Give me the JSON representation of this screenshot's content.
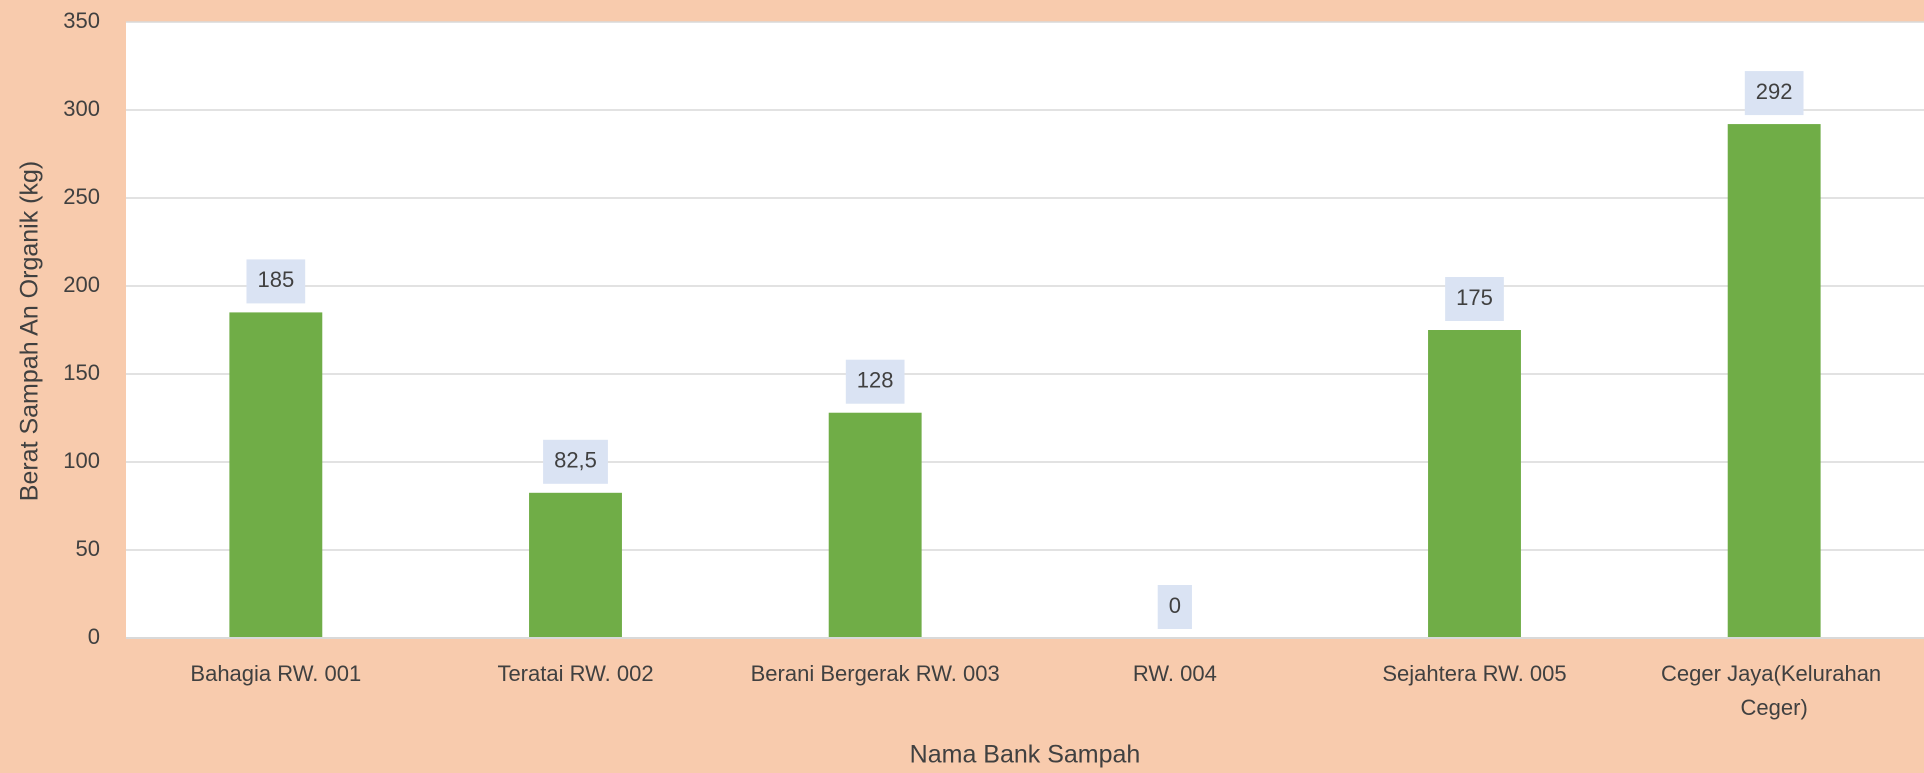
{
  "chart_data": {
    "type": "bar",
    "x_label": "Nama Bank Sampah",
    "y_label": "Berat Sampah An Organik (kg)",
    "categories": [
      "Bahagia RW. 001",
      "Teratai RW. 002",
      "Berani Bergerak RW. 003",
      "RW. 004",
      "Sejahtera RW. 005",
      "Ceger Jaya(Kelurahan Ceger)"
    ],
    "values": [
      185,
      82.5,
      128,
      0,
      175,
      292
    ],
    "value_labels": [
      "185",
      "82,5",
      "128",
      "0",
      "175",
      "292"
    ],
    "color": "#70ad47",
    "ylim": [
      0,
      350
    ],
    "yticks": [
      0,
      50,
      100,
      150,
      200,
      250,
      300,
      350
    ],
    "grid": true
  }
}
